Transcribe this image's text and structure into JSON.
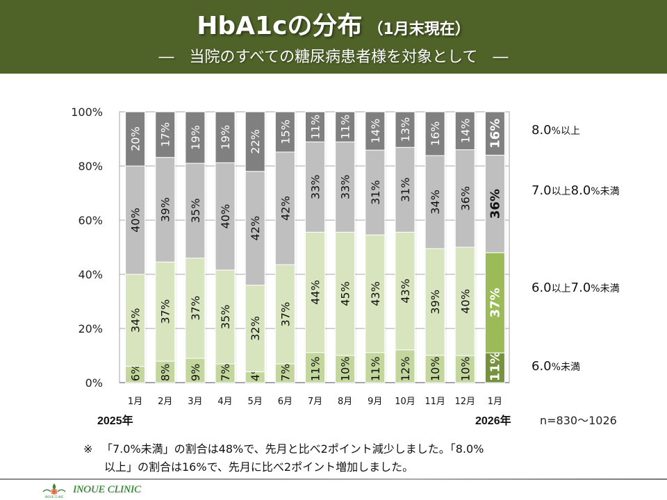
{
  "header": {
    "title": "HbA1cの分布",
    "title_suffix": "（1月末現在）",
    "subtitle": "―　当院のすべての糖尿病患者様を対象として　―"
  },
  "colors": {
    "header_bg": "#4f6228",
    "lt6": "#c3d69b",
    "6to7": "#d7e4bd",
    "7to8": "#bfbfbf",
    "ge8": "#808080",
    "lt6_current": "#76923c",
    "6to7_current": "#9bbb59"
  },
  "chart_data": {
    "type": "bar",
    "stacked": true,
    "orientation": "vertical",
    "title": "HbA1cの分布",
    "categories": [
      "1月",
      "2月",
      "3月",
      "4月",
      "5月",
      "6月",
      "7月",
      "8月",
      "9月",
      "10月",
      "11月",
      "12月",
      "1月"
    ],
    "years": {
      "start": "2025年",
      "end": "2026年"
    },
    "series": [
      {
        "name": "6.0%未満",
        "key": "lt6",
        "values": [
          6,
          8,
          9,
          7,
          4,
          7,
          11,
          10,
          11,
          12,
          10,
          10,
          11
        ]
      },
      {
        "name": "6.0以上7.0%未満",
        "key": "6to7",
        "values": [
          34,
          37,
          37,
          35,
          32,
          37,
          44,
          45,
          43,
          43,
          39,
          40,
          37
        ]
      },
      {
        "name": "7.0以上8.0%未満",
        "key": "7to8",
        "values": [
          40,
          39,
          35,
          40,
          42,
          42,
          33,
          33,
          31,
          31,
          34,
          36,
          36
        ]
      },
      {
        "name": "8.0%以上",
        "key": "ge8",
        "values": [
          20,
          17,
          19,
          19,
          22,
          15,
          11,
          11,
          14,
          13,
          16,
          14,
          16
        ]
      }
    ],
    "yticks": [
      "0%",
      "20%",
      "40%",
      "60%",
      "80%",
      "100%"
    ],
    "ylim": [
      0,
      100
    ],
    "ylabel": "",
    "xlabel": "",
    "grid": true,
    "legend_placement": "right",
    "highlight_last": true
  },
  "legend": {
    "ge8": {
      "num": "8.0",
      "unit": "%以上"
    },
    "7to8": {
      "num1": "7.0",
      "mid": "以上",
      "num2": "8.0",
      "unit": "%未満"
    },
    "6to7": {
      "num1": "6.0",
      "mid": "以上",
      "num2": "7.0",
      "unit": "%未満"
    },
    "lt6": {
      "num": "6.0",
      "unit": "%未満"
    }
  },
  "sample_size": "n=830～1026",
  "note": {
    "mark": "※",
    "line1": "「7.0%未満」の割合は48%で、先月と比べ2ポイント減少しました。「8.0%",
    "line2": "以上」の割合は16%で、先月に比べ2ポイント増加しました。"
  },
  "footer": {
    "clinic_name": "INOUE CLINIC",
    "logo_caption": "INOUE CLINIC"
  }
}
